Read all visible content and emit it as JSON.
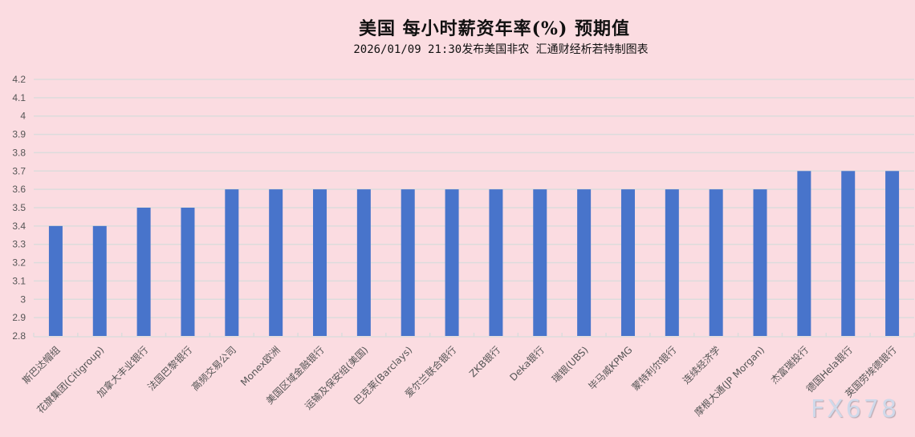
{
  "chart_data": {
    "type": "bar",
    "title": "美国  每小时薪资年率(%)  预期值",
    "subtitle": "2026/01/09 21:30发布美国非农 汇通财经析若特制图表",
    "xlabel": "",
    "ylabel": "",
    "ylim": [
      2.8,
      4.2
    ],
    "yticks": [
      "4.2",
      "4.1",
      "4",
      "3.9",
      "3.8",
      "3.7",
      "3.6",
      "3.5",
      "3.4",
      "3.3",
      "3.2",
      "3.1",
      "3",
      "2.9",
      "2.8"
    ],
    "grid": true,
    "legend": "none",
    "categories": [
      "斯巴达帽组",
      "花旗集团(Citigroup)",
      "加拿大丰业银行",
      "法国巴黎银行",
      "高频交易公司",
      "Monex欧洲",
      "美国区域金融银行",
      "运输及保安组(美国)",
      "巴克莱(Barclays)",
      "爱尔兰联合银行",
      "ZKB银行",
      "Deka银行",
      "瑞银(UBS)",
      "毕马威KPMG",
      "蒙特利尔银行",
      "连续经济学",
      "摩根大通(JP Morgan)",
      "杰富瑞投行",
      "德国Hela银行",
      "英国劳埃德银行"
    ],
    "values": [
      3.4,
      3.4,
      3.5,
      3.5,
      3.6,
      3.6,
      3.6,
      3.6,
      3.6,
      3.6,
      3.6,
      3.6,
      3.6,
      3.6,
      3.6,
      3.6,
      3.6,
      3.7,
      3.7,
      3.7
    ],
    "colors": {
      "bar": "#4874cb",
      "background": "#fbdce1",
      "grid": "#dcdcdc"
    }
  },
  "watermark": "FX678"
}
